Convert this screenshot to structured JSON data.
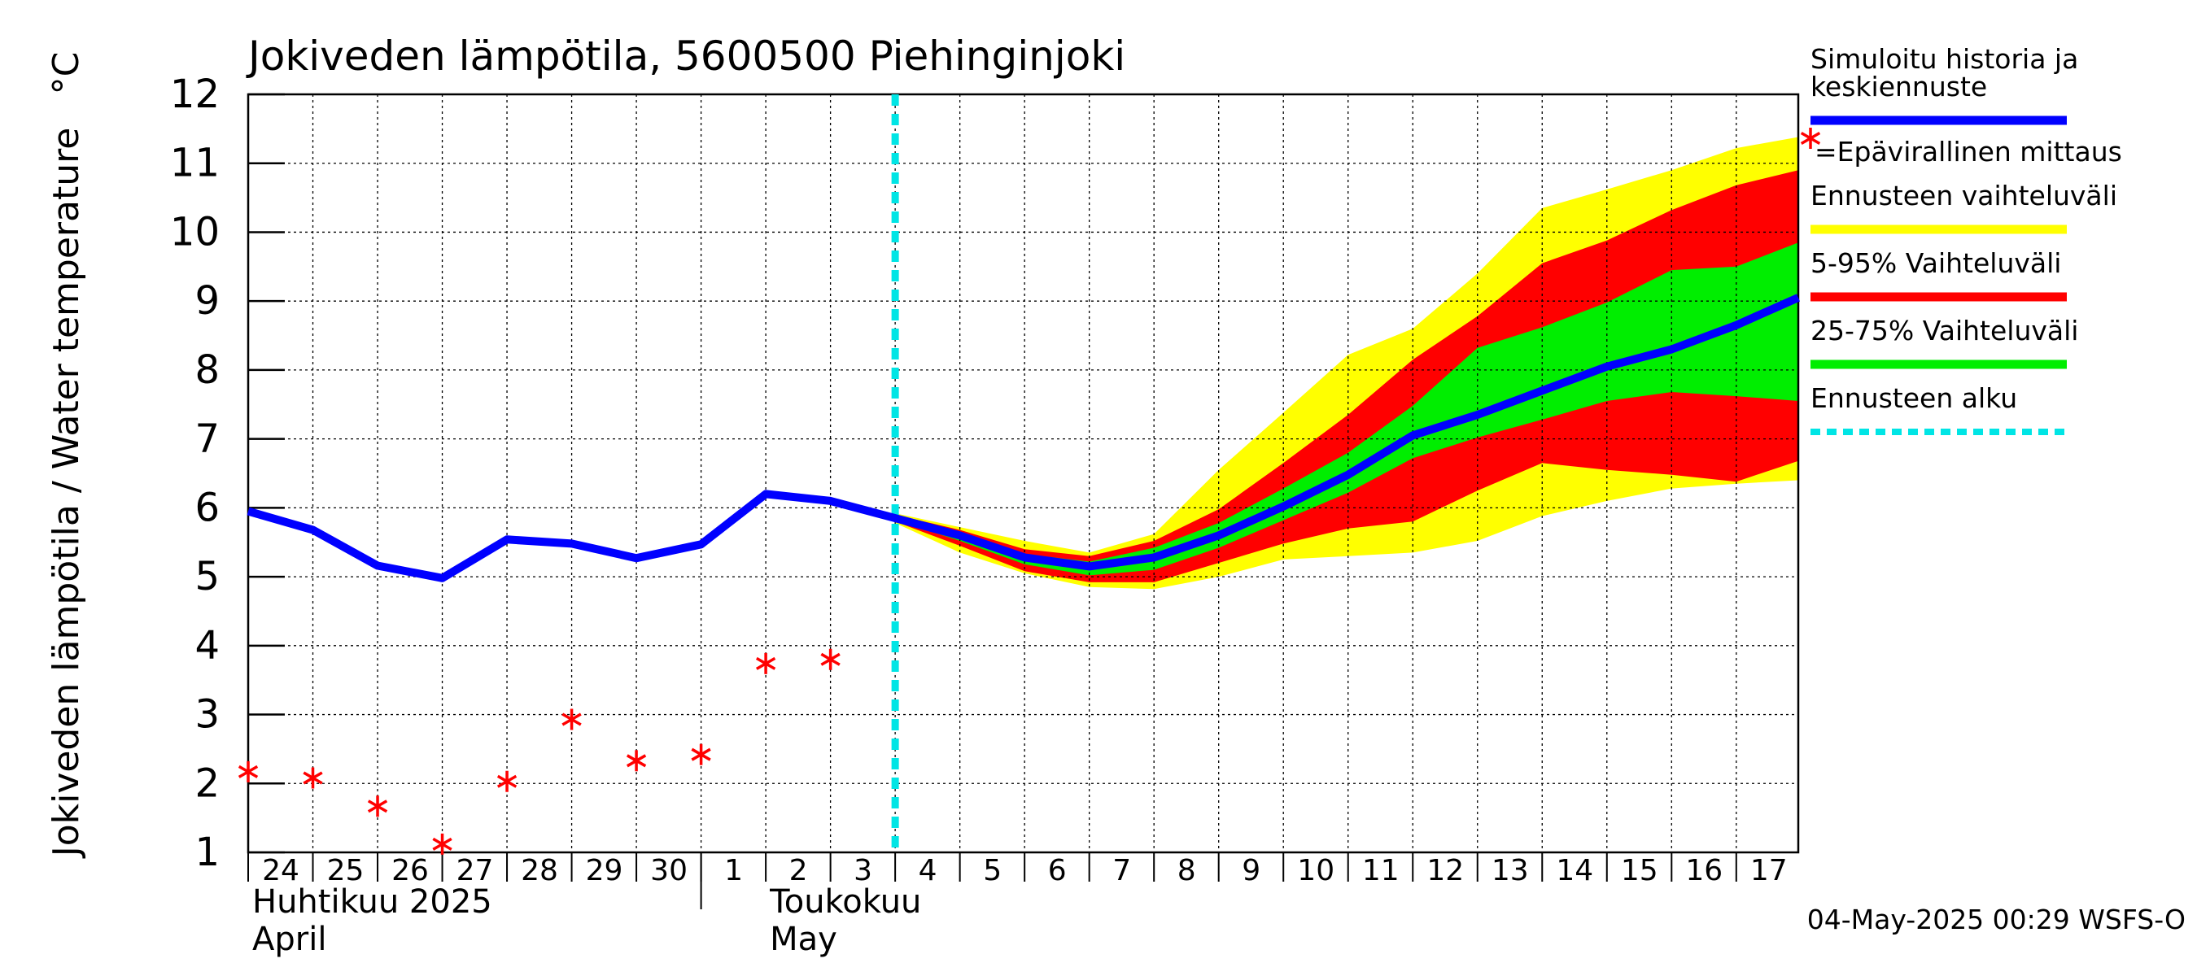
{
  "chart_data": {
    "type": "line",
    "title": "Jokiveden lämpötila, 5600500 Piehinginjoki",
    "ylabel": "Jokiveden lämpötila / Water temperature",
    "yunit": "°C",
    "ylim": [
      1,
      12
    ],
    "yticks": [
      1,
      2,
      3,
      4,
      5,
      6,
      7,
      8,
      9,
      10,
      11,
      12
    ],
    "xlim": [
      "2025-04-24",
      "2025-05-17 23:00"
    ],
    "xticks": [
      {
        "date": "2025-04-24",
        "label": "24"
      },
      {
        "date": "2025-04-25",
        "label": "25"
      },
      {
        "date": "2025-04-26",
        "label": "26"
      },
      {
        "date": "2025-04-27",
        "label": "27"
      },
      {
        "date": "2025-04-28",
        "label": "28"
      },
      {
        "date": "2025-04-29",
        "label": "29"
      },
      {
        "date": "2025-04-30",
        "label": "30"
      },
      {
        "date": "2025-05-01",
        "label": "1"
      },
      {
        "date": "2025-05-02",
        "label": "2"
      },
      {
        "date": "2025-05-03",
        "label": "3"
      },
      {
        "date": "2025-05-04",
        "label": "4"
      },
      {
        "date": "2025-05-05",
        "label": "5"
      },
      {
        "date": "2025-05-06",
        "label": "6"
      },
      {
        "date": "2025-05-07",
        "label": "7"
      },
      {
        "date": "2025-05-08",
        "label": "8"
      },
      {
        "date": "2025-05-09",
        "label": "9"
      },
      {
        "date": "2025-05-10",
        "label": "10"
      },
      {
        "date": "2025-05-11",
        "label": "11"
      },
      {
        "date": "2025-05-12",
        "label": "12"
      },
      {
        "date": "2025-05-13",
        "label": "13"
      },
      {
        "date": "2025-05-14",
        "label": "14"
      },
      {
        "date": "2025-05-15",
        "label": "15"
      },
      {
        "date": "2025-05-16",
        "label": "16"
      },
      {
        "date": "2025-05-17",
        "label": "17"
      }
    ],
    "month_labels": [
      {
        "line1": "Huhtikuu  2025",
        "line2": "April",
        "date": "2025-04-24"
      },
      {
        "line1": "Toukokuu",
        "line2": "May",
        "date": "2025-05-02"
      }
    ],
    "month_divider_date": "2025-05-01",
    "forecast_start": "2025-05-04",
    "grid": true,
    "legend_position": "right",
    "series": [
      {
        "name": "Simuloitu historia ja keskiennuste",
        "type": "line",
        "color": "#0000ff",
        "points": [
          [
            "2025-04-24",
            5.95
          ],
          [
            "2025-04-25",
            5.68
          ],
          [
            "2025-04-26",
            5.16
          ],
          [
            "2025-04-27",
            4.98
          ],
          [
            "2025-04-28",
            5.54
          ],
          [
            "2025-04-29",
            5.48
          ],
          [
            "2025-04-30",
            5.27
          ],
          [
            "2025-05-01",
            5.47
          ],
          [
            "2025-05-02",
            6.2
          ],
          [
            "2025-05-03",
            6.1
          ],
          [
            "2025-05-04",
            5.85
          ],
          [
            "2025-05-05",
            5.6
          ],
          [
            "2025-05-06",
            5.28
          ],
          [
            "2025-05-07",
            5.15
          ],
          [
            "2025-05-08",
            5.28
          ],
          [
            "2025-05-09",
            5.6
          ],
          [
            "2025-05-10",
            6.02
          ],
          [
            "2025-05-11",
            6.48
          ],
          [
            "2025-05-12",
            7.05
          ],
          [
            "2025-05-13",
            7.35
          ],
          [
            "2025-05-14",
            7.7
          ],
          [
            "2025-05-15",
            8.05
          ],
          [
            "2025-05-16",
            8.3
          ],
          [
            "2025-05-17",
            8.65
          ],
          [
            "2025-05-17 23:00",
            9.05
          ]
        ]
      },
      {
        "name": "=Epävirallinen mittaus",
        "type": "scatter",
        "color": "#ff0000",
        "points": [
          [
            "2025-04-24",
            2.17
          ],
          [
            "2025-04-25",
            2.08
          ],
          [
            "2025-04-26",
            1.67
          ],
          [
            "2025-04-27",
            1.12
          ],
          [
            "2025-04-28",
            2.03
          ],
          [
            "2025-04-29",
            2.93
          ],
          [
            "2025-04-30",
            2.33
          ],
          [
            "2025-05-01",
            2.42
          ],
          [
            "2025-05-02",
            3.74
          ],
          [
            "2025-05-03",
            3.8
          ]
        ]
      },
      {
        "name": "Ennusteen vaihteluväli",
        "type": "band",
        "color": "#ffff00",
        "x": [
          "2025-05-04",
          "2025-05-05",
          "2025-05-06",
          "2025-05-07",
          "2025-05-08",
          "2025-05-09",
          "2025-05-10",
          "2025-05-11",
          "2025-05-12",
          "2025-05-13",
          "2025-05-14",
          "2025-05-15",
          "2025-05-16",
          "2025-05-17",
          "2025-05-17 23:00"
        ],
        "low": [
          5.78,
          5.35,
          5.05,
          4.85,
          4.82,
          5.0,
          5.25,
          5.3,
          5.35,
          5.52,
          5.88,
          6.1,
          6.28,
          6.35,
          6.4
        ],
        "high": [
          5.92,
          5.72,
          5.52,
          5.35,
          5.62,
          6.55,
          7.38,
          8.22,
          8.6,
          9.4,
          10.35,
          10.62,
          10.9,
          11.22,
          11.38
        ]
      },
      {
        "name": "5-95% Vaihteluväli",
        "type": "band",
        "color": "#ff0000",
        "x": [
          "2025-05-04",
          "2025-05-05",
          "2025-05-06",
          "2025-05-07",
          "2025-05-08",
          "2025-05-09",
          "2025-05-10",
          "2025-05-11",
          "2025-05-12",
          "2025-05-13",
          "2025-05-14",
          "2025-05-15",
          "2025-05-16",
          "2025-05-17",
          "2025-05-17 23:00"
        ],
        "low": [
          5.8,
          5.45,
          5.08,
          4.92,
          4.92,
          5.2,
          5.48,
          5.7,
          5.8,
          6.25,
          6.65,
          6.55,
          6.48,
          6.38,
          6.68
        ],
        "high": [
          5.9,
          5.68,
          5.4,
          5.3,
          5.52,
          5.98,
          6.65,
          7.35,
          8.15,
          8.78,
          9.55,
          9.88,
          10.32,
          10.68,
          10.9
        ]
      },
      {
        "name": "25-75% Vaihteluväli",
        "type": "band",
        "color": "#00ee00",
        "x": [
          "2025-05-04",
          "2025-05-05",
          "2025-05-06",
          "2025-05-07",
          "2025-05-08",
          "2025-05-09",
          "2025-05-10",
          "2025-05-11",
          "2025-05-12",
          "2025-05-13",
          "2025-05-14",
          "2025-05-15",
          "2025-05-16",
          "2025-05-17",
          "2025-05-17 23:00"
        ],
        "low": [
          5.82,
          5.52,
          5.18,
          5.02,
          5.1,
          5.42,
          5.82,
          6.22,
          6.72,
          7.02,
          7.28,
          7.55,
          7.68,
          7.62,
          7.55
        ],
        "high": [
          5.88,
          5.63,
          5.33,
          5.22,
          5.42,
          5.78,
          6.28,
          6.8,
          7.48,
          8.32,
          8.62,
          8.98,
          9.45,
          9.5,
          9.85
        ]
      },
      {
        "name": "Ennusteen alku",
        "type": "vline",
        "color": "#00e5e5",
        "x": "2025-05-04"
      }
    ],
    "legend": [
      {
        "label": "Simuloitu historia ja keskiennuste",
        "lines": [
          "Simuloitu historia ja",
          "keskiennuste"
        ],
        "color": "#0000ff",
        "style": "line"
      },
      {
        "label": "=Epävirallinen mittaus",
        "color": "#ff0000",
        "style": "marker"
      },
      {
        "label": "Ennusteen vaihteluväli",
        "color": "#ffff00",
        "style": "line"
      },
      {
        "label": "5-95% Vaihteluväli",
        "color": "#ff0000",
        "style": "line"
      },
      {
        "label": "25-75% Vaihteluväli",
        "color": "#00ee00",
        "style": "line"
      },
      {
        "label": "Ennusteen alku",
        "color": "#00e5e5",
        "style": "dashed"
      }
    ],
    "footer": "04-May-2025 00:29 WSFS-O"
  }
}
